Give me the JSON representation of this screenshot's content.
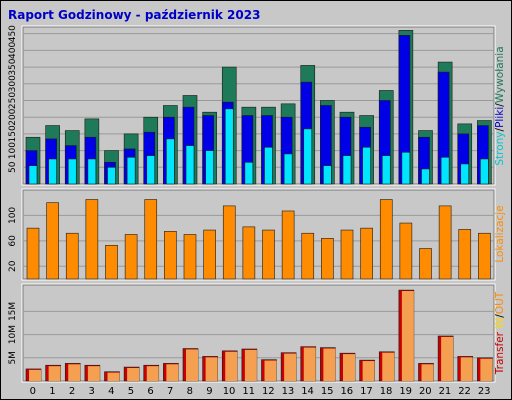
{
  "chart_data": [
    {
      "type": "bar",
      "title": "Raport Godzinowy -  październik 2023",
      "legend": {
        "labels": [
          "Strony",
          "/",
          "Pliki",
          "/",
          "Wywołania"
        ],
        "colors": [
          "#00c8c8",
          "#000000",
          "#0000c8",
          "#000000",
          "#1f7a5a"
        ],
        "placement": "right"
      },
      "yticks": [
        50,
        100,
        150,
        200,
        250,
        300,
        350,
        400,
        450
      ],
      "ylim": [
        0,
        470
      ],
      "categories": [
        "0",
        "1",
        "2",
        "3",
        "4",
        "5",
        "6",
        "7",
        "8",
        "9",
        "10",
        "11",
        "12",
        "13",
        "14",
        "15",
        "16",
        "17",
        "18",
        "19",
        "20",
        "21",
        "22",
        "23"
      ],
      "series": [
        {
          "name": "Wywołania",
          "color": "#1f7a5a",
          "values": [
            140,
            175,
            160,
            195,
            100,
            150,
            200,
            235,
            265,
            215,
            350,
            230,
            230,
            240,
            355,
            250,
            215,
            205,
            280,
            460,
            160,
            365,
            180,
            190
          ]
        },
        {
          "name": "Pliki",
          "color": "#0000e6",
          "values": [
            100,
            135,
            115,
            140,
            65,
            105,
            155,
            200,
            230,
            205,
            245,
            205,
            205,
            200,
            305,
            235,
            200,
            170,
            250,
            445,
            140,
            335,
            150,
            175
          ]
        },
        {
          "name": "Strony",
          "color": "#00e6ff",
          "values": [
            55,
            75,
            75,
            75,
            50,
            80,
            85,
            135,
            115,
            100,
            225,
            65,
            110,
            90,
            165,
            55,
            85,
            110,
            85,
            95,
            45,
            80,
            60,
            75
          ]
        }
      ]
    },
    {
      "type": "bar",
      "legend": {
        "labels": [
          "Lokalizacje"
        ],
        "colors": [
          "#ff8c00"
        ],
        "placement": "right"
      },
      "yticks": [
        20,
        60,
        100
      ],
      "ylim": [
        0,
        140
      ],
      "categories": [
        "0",
        "1",
        "2",
        "3",
        "4",
        "5",
        "6",
        "7",
        "8",
        "9",
        "10",
        "11",
        "12",
        "13",
        "14",
        "15",
        "16",
        "17",
        "18",
        "19",
        "20",
        "21",
        "22",
        "23"
      ],
      "series": [
        {
          "name": "Lokalizacje",
          "color": "#ff8c00",
          "values": [
            80,
            120,
            72,
            125,
            53,
            70,
            125,
            75,
            70,
            77,
            115,
            82,
            77,
            107,
            72,
            64,
            77,
            80,
            125,
            88,
            48,
            115,
            78,
            72
          ]
        }
      ]
    },
    {
      "type": "bar",
      "legend": {
        "labels": [
          "Transfer",
          "IN",
          "/",
          "OUT"
        ],
        "colors": [
          "#c80000",
          "#ffd700",
          "#000000",
          "#ff8c00"
        ],
        "placement": "right"
      },
      "yticks": [
        5,
        10,
        15
      ],
      "ytick_labels": [
        "5M",
        "10M",
        "15M"
      ],
      "ylim": [
        0,
        20.7
      ],
      "categories": [
        "0",
        "1",
        "2",
        "3",
        "4",
        "5",
        "6",
        "7",
        "8",
        "9",
        "10",
        "11",
        "12",
        "13",
        "14",
        "15",
        "16",
        "17",
        "18",
        "19",
        "20",
        "21",
        "22",
        "23"
      ],
      "series": [
        {
          "name": "IN",
          "color": "#c80000",
          "values": [
            2.6,
            3.4,
            3.8,
            3.4,
            2.0,
            3.0,
            3.4,
            3.8,
            7.0,
            5.3,
            6.5,
            6.9,
            4.6,
            6.1,
            7.4,
            7.2,
            6.0,
            4.5,
            6.3,
            19.6,
            3.8,
            9.7,
            5.3,
            5.0
          ]
        },
        {
          "name": "OUT",
          "color": "#f5a050",
          "values": [
            2.4,
            3.2,
            3.6,
            3.2,
            1.8,
            2.8,
            3.2,
            3.6,
            6.8,
            5.1,
            6.3,
            6.7,
            4.4,
            5.9,
            7.2,
            7.0,
            5.8,
            4.3,
            6.1,
            19.4,
            3.6,
            9.5,
            5.1,
            4.8
          ]
        }
      ]
    }
  ]
}
